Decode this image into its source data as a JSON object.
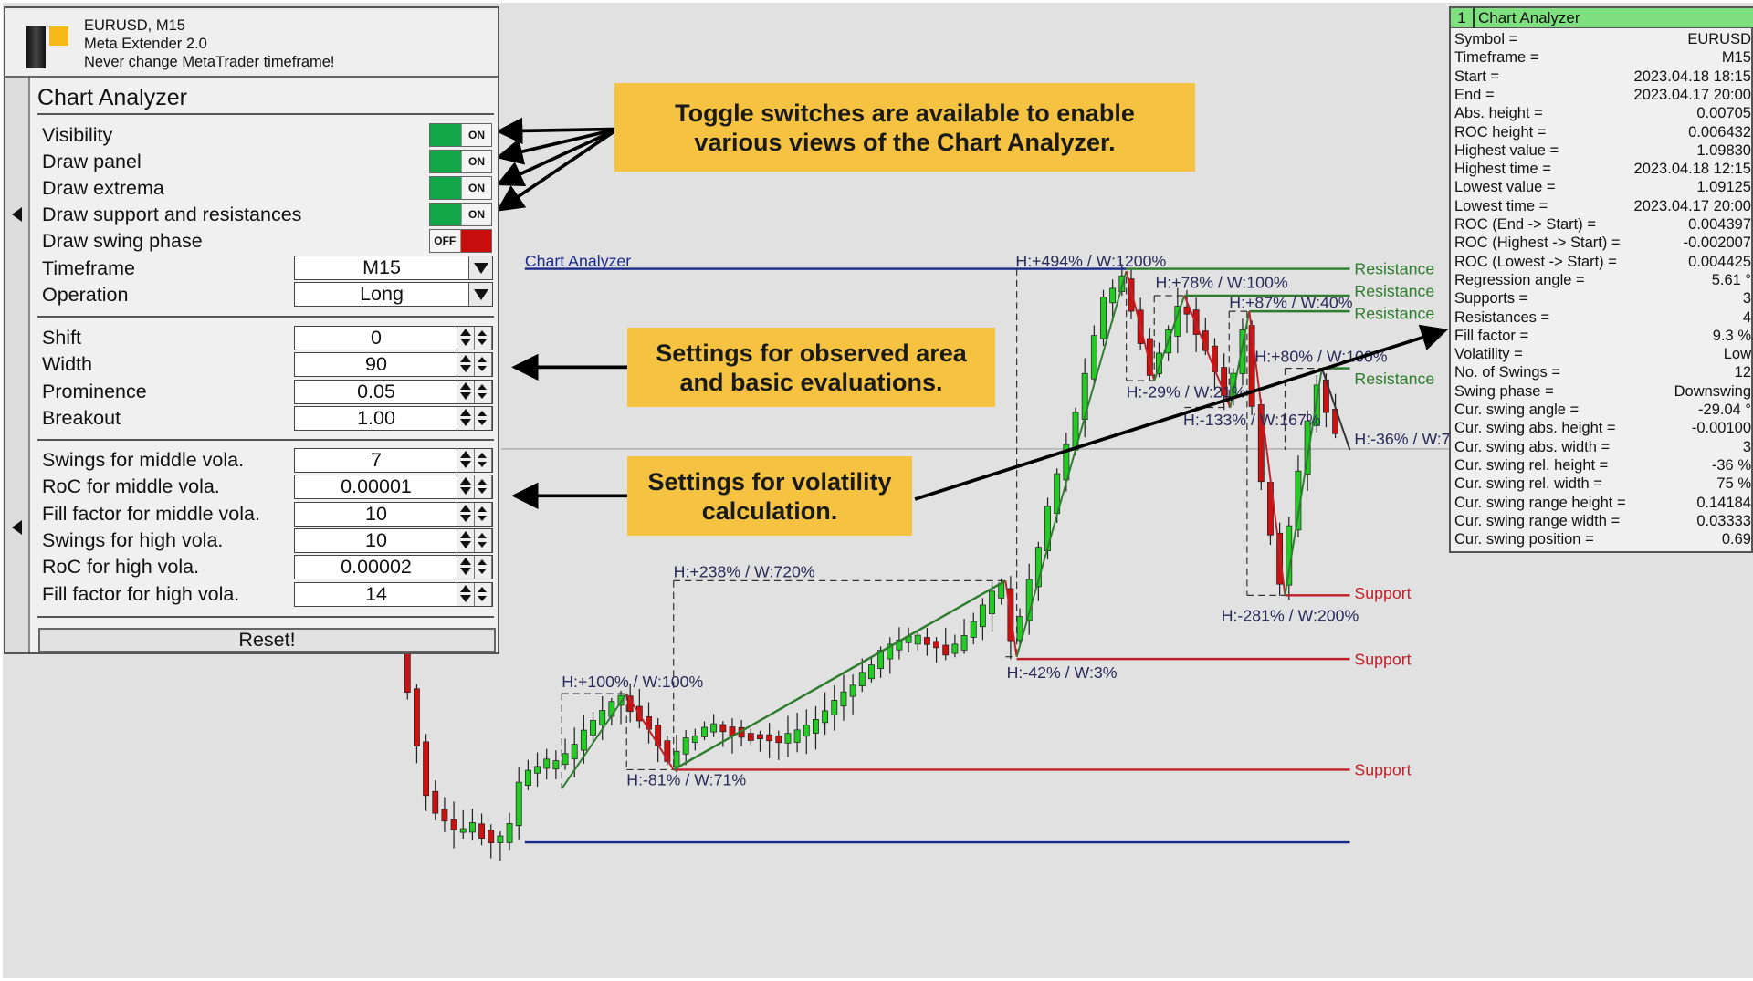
{
  "header": {
    "symbol_line": "EURUSD, M15",
    "product": "Meta Extender 2.0",
    "warning": "Never change MetaTrader timeframe!"
  },
  "panel": {
    "title": "Chart Analyzer",
    "toggles": [
      {
        "label": "Visibility",
        "state": "ON"
      },
      {
        "label": "Draw panel",
        "state": "ON"
      },
      {
        "label": "Draw extrema",
        "state": "ON"
      },
      {
        "label": "Draw support and resistances",
        "state": "ON"
      },
      {
        "label": "Draw swing phase",
        "state": "OFF"
      }
    ],
    "selects": [
      {
        "label": "Timeframe",
        "value": "M15"
      },
      {
        "label": "Operation",
        "value": "Long"
      }
    ],
    "area_settings": [
      {
        "label": "Shift",
        "value": "0"
      },
      {
        "label": "Width",
        "value": "90"
      },
      {
        "label": "Prominence",
        "value": "0.05"
      },
      {
        "label": "Breakout",
        "value": "1.00"
      }
    ],
    "vola_settings": [
      {
        "label": "Swings for middle vola.",
        "value": "7"
      },
      {
        "label": "RoC for middle vola.",
        "value": "0.00001"
      },
      {
        "label": "Fill factor for middle vola.",
        "value": "10"
      },
      {
        "label": "Swings for high vola.",
        "value": "10"
      },
      {
        "label": "RoC for high vola.",
        "value": "0.00002"
      },
      {
        "label": "Fill factor for high vola.",
        "value": "14"
      }
    ],
    "reset_label": "Reset!"
  },
  "callouts": {
    "toggles": "Toggle switches are available to enable various views of the Chart Analyzer.",
    "area": "Settings for observed area and basic evaluations.",
    "volatility": "Settings for volatility calculation."
  },
  "info_panel": {
    "index": "1",
    "title": "Chart Analyzer",
    "rows": [
      {
        "k": "Symbol =",
        "v": "EURUSD"
      },
      {
        "k": "Timeframe =",
        "v": "M15"
      },
      {
        "k": "Start =",
        "v": "2023.04.18 18:15"
      },
      {
        "k": "End =",
        "v": "2023.04.17 20:00"
      },
      {
        "k": "Abs. height =",
        "v": "0.00705"
      },
      {
        "k": "ROC height =",
        "v": "0.006432"
      },
      {
        "k": "Highest value =",
        "v": "1.09830"
      },
      {
        "k": "Highest time =",
        "v": "2023.04.18 12:15"
      },
      {
        "k": "Lowest value =",
        "v": "1.09125"
      },
      {
        "k": "Lowest time =",
        "v": "2023.04.17 20:00"
      },
      {
        "k": "ROC (End -> Start) =",
        "v": "0.004397"
      },
      {
        "k": "ROC (Highest -> Start) =",
        "v": "-0.002007"
      },
      {
        "k": "ROC (Lowest -> Start) =",
        "v": "0.004425"
      },
      {
        "k": "Regression angle =",
        "v": "5.61 °"
      },
      {
        "k": "Supports =",
        "v": "3"
      },
      {
        "k": "Resistances =",
        "v": "4"
      },
      {
        "k": "Fill factor =",
        "v": "9.3 %"
      },
      {
        "k": "Volatility =",
        "v": "Low"
      },
      {
        "k": "No. of Swings =",
        "v": "12"
      },
      {
        "k": "Swing phase =",
        "v": "Downswing"
      },
      {
        "k": "Cur. swing angle =",
        "v": "-29.04 °"
      },
      {
        "k": "Cur. swing abs. height =",
        "v": "-0.00100"
      },
      {
        "k": "Cur. swing abs. width =",
        "v": "3"
      },
      {
        "k": "Cur. swing rel. height =",
        "v": "-36 %"
      },
      {
        "k": "Cur. swing rel. width =",
        "v": "75 %"
      },
      {
        "k": "Cur. swing range height =",
        "v": "0.14184"
      },
      {
        "k": "Cur. swing range width =",
        "v": "0.03333"
      },
      {
        "k": "Cur. swing position =",
        "v": "0.69"
      }
    ]
  },
  "chart": {
    "indicator_label": "Chart Analyzer",
    "resistance_label": "Resistance",
    "support_label": "Support",
    "swing_labels": [
      "H:+494% / W:1200%",
      "H:+78% / W:100%",
      "H:+87% / W:40%",
      "H:+80% / W:100%",
      "H:-29% / W:21%",
      "H:-133% / W:167%",
      "H:-36% / W:7",
      "H:-281% / W:200%",
      "H:+238% / W:720%",
      "H:+100% / W:100%",
      "H:-81% / W:71%",
      "H:-42% / W:3%"
    ],
    "colors": {
      "bull": "#22cc22",
      "bear": "#cc1111",
      "resistance": "#2e7d2e",
      "support": "#c0202a",
      "range": "#1a2a8a",
      "callout": "#f5c242"
    }
  }
}
